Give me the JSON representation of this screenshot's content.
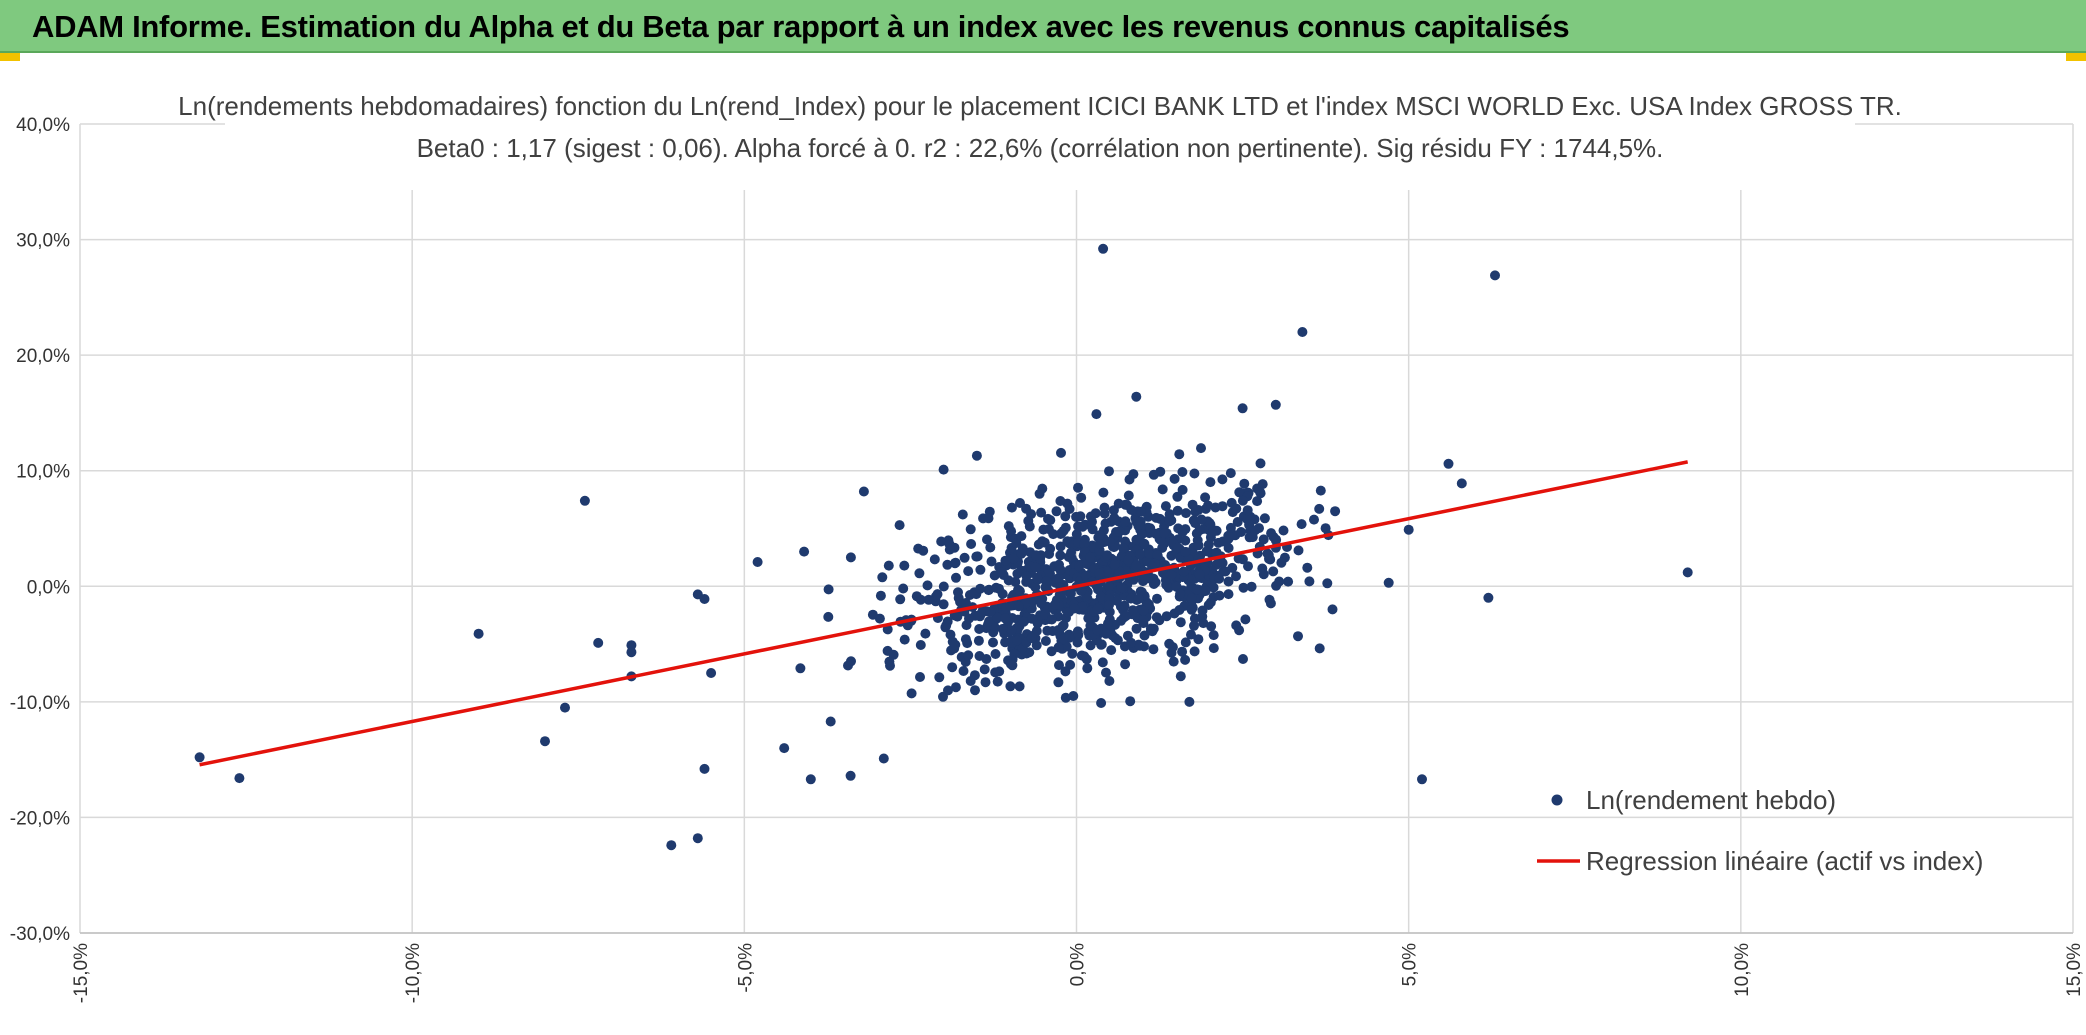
{
  "banner": {
    "title": "ADAM Informe. Estimation du Alpha et du Beta par rapport à un index avec les revenus connus capitalisés",
    "background": "#7fc97f",
    "corner_color": "#f2c200"
  },
  "chart_data": {
    "type": "scatter",
    "title_lines": [
      "Ln(rendements hebdomadaires) fonction du Ln(rend_Index) pour le placement ICICI BANK LTD et l'index MSCI WORLD Exc. USA Index GROSS TR.",
      "Beta0 : 1,17 (sigest : 0,06). Alpha forcé à 0. r2 : 22,6% (corrélation non pertinente). Sig résidu FY : 1744,5%."
    ],
    "xlabel": "",
    "ylabel": "",
    "xlim": [
      -0.15,
      0.15
    ],
    "ylim": [
      -0.3,
      0.4
    ],
    "x_ticks": [
      -0.15,
      -0.1,
      -0.05,
      0.0,
      0.05,
      0.1,
      0.15
    ],
    "x_tick_labels": [
      "-15,0%",
      "-10,0%",
      "-5,0%",
      "0,0%",
      "5,0%",
      "10,0%",
      "15,0%"
    ],
    "y_ticks": [
      0.4,
      0.3,
      0.2,
      0.1,
      0.0,
      -0.1,
      -0.2,
      -0.3
    ],
    "y_tick_labels": [
      "40,0%",
      "30,0%",
      "20,0%",
      "10,0%",
      "0,0%",
      "-10,0%",
      "-20,0%",
      "-30,0%"
    ],
    "grid": true,
    "legend_position": "bottom-right",
    "series": [
      {
        "name": "Ln(rendement hebdo)",
        "kind": "scatter",
        "color": "#1f3a6e",
        "points_visible_outliers": [
          [
            -0.132,
            -0.148
          ],
          [
            -0.126,
            -0.166
          ],
          [
            -0.09,
            -0.041
          ],
          [
            -0.08,
            -0.134
          ],
          [
            -0.077,
            -0.105
          ],
          [
            -0.074,
            0.074
          ],
          [
            -0.072,
            -0.049
          ],
          [
            -0.067,
            -0.051
          ],
          [
            -0.067,
            -0.057
          ],
          [
            -0.067,
            -0.078
          ],
          [
            -0.061,
            -0.224
          ],
          [
            -0.057,
            -0.007
          ],
          [
            -0.057,
            -0.218
          ],
          [
            -0.056,
            -0.011
          ],
          [
            -0.056,
            -0.158
          ],
          [
            -0.055,
            -0.075
          ],
          [
            -0.048,
            0.021
          ],
          [
            -0.044,
            -0.14
          ],
          [
            -0.041,
            0.03
          ],
          [
            -0.04,
            -0.167
          ],
          [
            -0.037,
            -0.117
          ],
          [
            -0.034,
            -0.164
          ],
          [
            -0.032,
            0.082
          ],
          [
            -0.029,
            -0.149
          ],
          [
            -0.02,
            0.101
          ],
          [
            -0.015,
            0.113
          ],
          [
            0.004,
            0.292
          ],
          [
            0.003,
            0.149
          ],
          [
            0.009,
            0.164
          ],
          [
            0.017,
            -0.1
          ],
          [
            0.025,
            0.154
          ],
          [
            0.03,
            0.157
          ],
          [
            0.034,
            0.22
          ],
          [
            0.047,
            0.003
          ],
          [
            0.05,
            0.049
          ],
          [
            0.052,
            -0.167
          ],
          [
            0.056,
            0.106
          ],
          [
            0.058,
            0.089
          ],
          [
            0.062,
            -0.01
          ],
          [
            0.063,
            0.269
          ],
          [
            0.092,
            0.012
          ]
        ]
      },
      {
        "name": "Regression linéaire (actif vs index)",
        "kind": "line",
        "color": "#e3120b",
        "slope": 1.17,
        "intercept": 0.0,
        "x_range": [
          -0.132,
          0.092
        ]
      }
    ]
  }
}
